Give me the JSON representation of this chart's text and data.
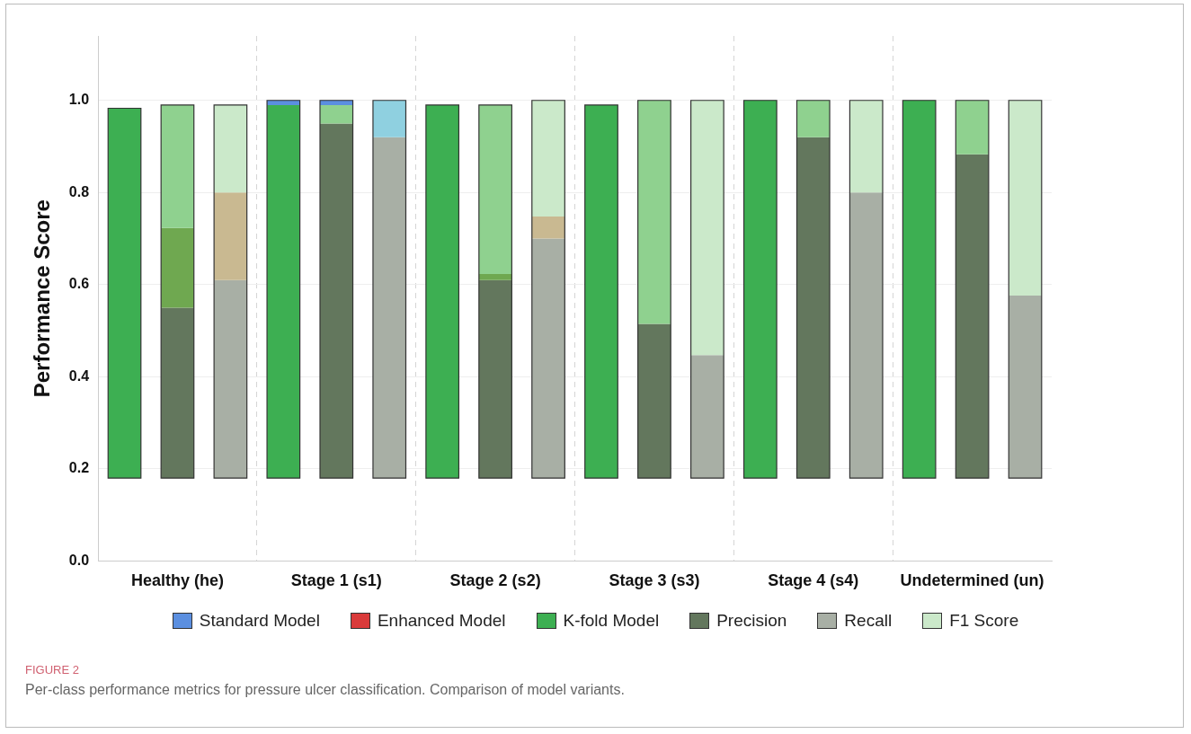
{
  "chart_data": {
    "type": "bar",
    "categories": [
      null,
      "Healthy (he)",
      null,
      null,
      "Stage 1 (s1)",
      null,
      null,
      "Stage 2 (s2)",
      null,
      null,
      "Stage 3 (s3)",
      null,
      null,
      "Stage 4 (s4)",
      null,
      null,
      "Undetermined (un)",
      null
    ],
    "series": [
      {
        "name": "Standard Model",
        "color": "#5b8fe0",
        "values": [
          null,
          null,
          null,
          null,
          null,
          null,
          null,
          null,
          null,
          null,
          null,
          null,
          null,
          null,
          null,
          null,
          null,
          null
        ]
      },
      {
        "name": "Enhanced Model",
        "color": "#d93a3a",
        "values": [
          null,
          null,
          null,
          null,
          null,
          null,
          null,
          null,
          null,
          null,
          null,
          null,
          null,
          null,
          null,
          null,
          null,
          null
        ]
      },
      {
        "name": "K-fold Model",
        "color": "#3daf52",
        "values": [
          0.803,
          null,
          null,
          0.81,
          null,
          null,
          0.81,
          null,
          null,
          0.81,
          null,
          null,
          0.82,
          null,
          null,
          0.82,
          null,
          null
        ],
        "base": [
          0.18,
          null,
          null,
          0.18,
          null,
          null,
          0.18,
          null,
          null,
          0.18,
          null,
          null,
          0.18,
          null,
          null,
          0.18,
          null,
          null
        ]
      },
      {
        "name": "Precision",
        "color": "#63775d",
        "values": [
          null,
          0.37,
          null,
          null,
          0.77,
          null,
          null,
          0.43,
          null,
          null,
          0.335,
          null,
          null,
          0.74,
          null,
          null,
          0.703,
          null
        ],
        "base": [
          null,
          0.18,
          null,
          null,
          0.18,
          null,
          null,
          0.18,
          null,
          null,
          0.18,
          null,
          null,
          0.18,
          null,
          null,
          0.18,
          null
        ]
      },
      {
        "name": "Recall",
        "color": "#a8afa5",
        "values": [
          null,
          null,
          0.43,
          null,
          null,
          0.74,
          null,
          null,
          0.52,
          null,
          null,
          0.267,
          null,
          null,
          0.62,
          null,
          null,
          0.396
        ],
        "base": [
          null,
          null,
          0.18,
          null,
          null,
          0.18,
          null,
          null,
          0.18,
          null,
          null,
          0.18,
          null,
          null,
          0.18,
          null,
          null,
          0.18
        ]
      },
      {
        "color": "#6fa850",
        "values": [
          null,
          0.173,
          null,
          null,
          null,
          null,
          null,
          0.013,
          null,
          null,
          null,
          null,
          null,
          null,
          null,
          null,
          null,
          null
        ],
        "base": [
          null,
          0.55,
          null,
          null,
          null,
          null,
          null,
          0.61,
          null,
          null,
          null,
          null,
          null,
          null,
          null,
          null,
          null,
          null
        ]
      },
      {
        "color": "#c9b991",
        "values": [
          null,
          null,
          0.19,
          null,
          null,
          null,
          null,
          null,
          0.048,
          null,
          null,
          null,
          null,
          null,
          null,
          null,
          null,
          null
        ],
        "base": [
          null,
          null,
          0.61,
          null,
          null,
          null,
          null,
          null,
          0.7,
          null,
          null,
          null,
          null,
          null,
          null,
          null,
          null,
          null
        ]
      },
      {
        "name": "F1 Score",
        "color": "#cbe9ca",
        "values": [
          null,
          null,
          0.19,
          null,
          null,
          null,
          null,
          null,
          0.252,
          null,
          null,
          0.553,
          null,
          null,
          0.2,
          null,
          null,
          0.424
        ],
        "base": [
          null,
          null,
          0.8,
          null,
          null,
          null,
          null,
          null,
          0.748,
          null,
          null,
          0.447,
          null,
          null,
          0.8,
          null,
          null,
          0.576
        ]
      },
      {
        "color": "#8fd18f",
        "values": [
          null,
          0.267,
          null,
          null,
          0.04,
          null,
          null,
          0.367,
          null,
          null,
          0.485,
          null,
          null,
          0.08,
          null,
          null,
          0.117,
          null
        ],
        "base": [
          null,
          0.723,
          null,
          null,
          0.95,
          null,
          null,
          0.623,
          null,
          null,
          0.515,
          null,
          null,
          0.92,
          null,
          null,
          0.883,
          null
        ]
      },
      {
        "color": "#5b8fe0",
        "values": [
          null,
          null,
          null,
          0.01,
          0.01,
          null,
          null,
          null,
          null,
          null,
          null,
          null,
          null,
          null,
          null,
          null,
          null,
          null
        ],
        "base": [
          null,
          null,
          null,
          0.99,
          0.99,
          null,
          null,
          null,
          null,
          null,
          null,
          null,
          null,
          null,
          null,
          null,
          null,
          null
        ]
      },
      {
        "color": "#8fd0e0",
        "values": [
          null,
          null,
          null,
          null,
          null,
          0.08,
          null,
          null,
          null,
          null,
          null,
          null,
          null,
          null,
          null,
          null,
          null,
          null
        ],
        "base": [
          null,
          null,
          null,
          null,
          null,
          0.92,
          null,
          null,
          null,
          null,
          null,
          null,
          null,
          null,
          null,
          null,
          null,
          null
        ]
      }
    ],
    "ylim": [
      0,
      1.14
    ],
    "yticks": [
      {
        "value": 0,
        "label": "0.0"
      },
      {
        "value": 0.2,
        "label": "0.2"
      },
      {
        "value": 0.4,
        "label": "0.4"
      },
      {
        "value": 0.6,
        "label": "0.6"
      },
      {
        "value": 0.8,
        "label": "0.8"
      },
      {
        "value": 1.0,
        "label": "1.0"
      }
    ],
    "ylabel": "Performance Score",
    "grid": true,
    "legend": "bottom",
    "annotations": [
      "FIGURE 2",
      "Per-class performance metrics for pressure ulcer classification. Comparison of model variants."
    ]
  }
}
